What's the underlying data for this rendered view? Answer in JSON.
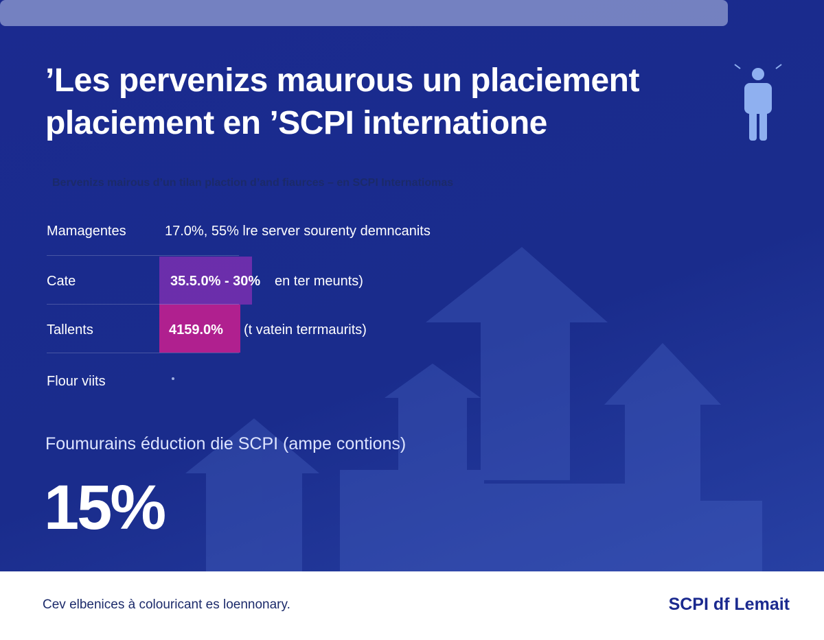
{
  "header": {
    "title": [
      "’Les pervenizs maurous un placiement",
      "placiement en ’SCPI internatione"
    ],
    "subtitle": "Bervenizs mairous d’un tilan plaction d’and fiaurces – en SCPI Internatiomas"
  },
  "table": {
    "rows": [
      {
        "label": "Mamagentes",
        "value": "17.0%, 55% lre server sourenty demncanits"
      },
      {
        "label": "Cate",
        "value": "35.5.0% - 30%",
        "note": "en ter meunts)"
      },
      {
        "label": "Tallents",
        "value": "4159.0%",
        "note": "(t vatein terrmaurits)"
      },
      {
        "label": "Flour viits"
      }
    ]
  },
  "stat": {
    "label": "Foumurains éduction die SCPI (ampe contions)",
    "value": "15%"
  },
  "footer": {
    "text": "Cev elbenices à colouricant es loennonary.",
    "brand": "SCPI df Lemait"
  }
}
